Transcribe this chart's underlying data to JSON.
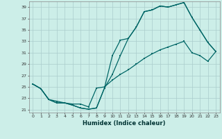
{
  "xlabel": "Humidex (Indice chaleur)",
  "bg_color": "#cceee8",
  "grid_color": "#aacccc",
  "line_color": "#006666",
  "xlim": [
    -0.5,
    23.5
  ],
  "ylim": [
    20.5,
    40.0
  ],
  "yticks": [
    21,
    23,
    25,
    27,
    29,
    31,
    33,
    35,
    37,
    39
  ],
  "xticks": [
    0,
    1,
    2,
    3,
    4,
    5,
    6,
    7,
    8,
    9,
    10,
    11,
    12,
    13,
    14,
    15,
    16,
    17,
    18,
    19,
    20,
    21,
    22,
    23
  ],
  "line1_x": [
    0,
    1,
    2,
    3,
    4,
    5,
    6,
    7,
    8,
    9,
    10,
    11,
    12,
    13,
    14,
    15,
    16,
    17,
    18,
    19,
    20,
    21,
    22,
    23
  ],
  "line1_y": [
    25.5,
    24.7,
    22.8,
    22.2,
    22.2,
    21.8,
    21.3,
    21.1,
    21.3,
    24.8,
    30.5,
    33.2,
    33.5,
    35.5,
    38.2,
    38.5,
    39.2,
    39.0,
    39.4,
    39.8,
    37.2,
    35.0,
    32.8,
    31.2
  ],
  "line2_x": [
    0,
    1,
    2,
    3,
    4,
    5,
    6,
    7,
    8,
    9,
    10,
    11,
    12,
    13,
    14,
    15,
    16,
    17,
    18,
    19,
    20,
    21,
    22,
    23
  ],
  "line2_y": [
    25.5,
    24.7,
    22.8,
    22.2,
    22.2,
    21.8,
    21.3,
    21.1,
    21.3,
    24.8,
    27.2,
    30.5,
    33.5,
    35.5,
    38.2,
    38.5,
    39.2,
    39.0,
    39.4,
    39.8,
    37.2,
    35.0,
    32.8,
    31.2
  ],
  "line3_x": [
    0,
    1,
    2,
    3,
    4,
    5,
    6,
    7,
    8,
    9,
    10,
    11,
    12,
    13,
    14,
    15,
    16,
    17,
    18,
    19,
    20,
    21,
    22,
    23
  ],
  "line3_y": [
    25.5,
    24.7,
    22.8,
    22.5,
    22.2,
    22.0,
    22.0,
    21.5,
    24.8,
    25.0,
    26.2,
    27.2,
    28.0,
    29.0,
    30.0,
    30.8,
    31.5,
    32.0,
    32.5,
    33.0,
    31.0,
    30.5,
    29.5,
    31.2
  ]
}
